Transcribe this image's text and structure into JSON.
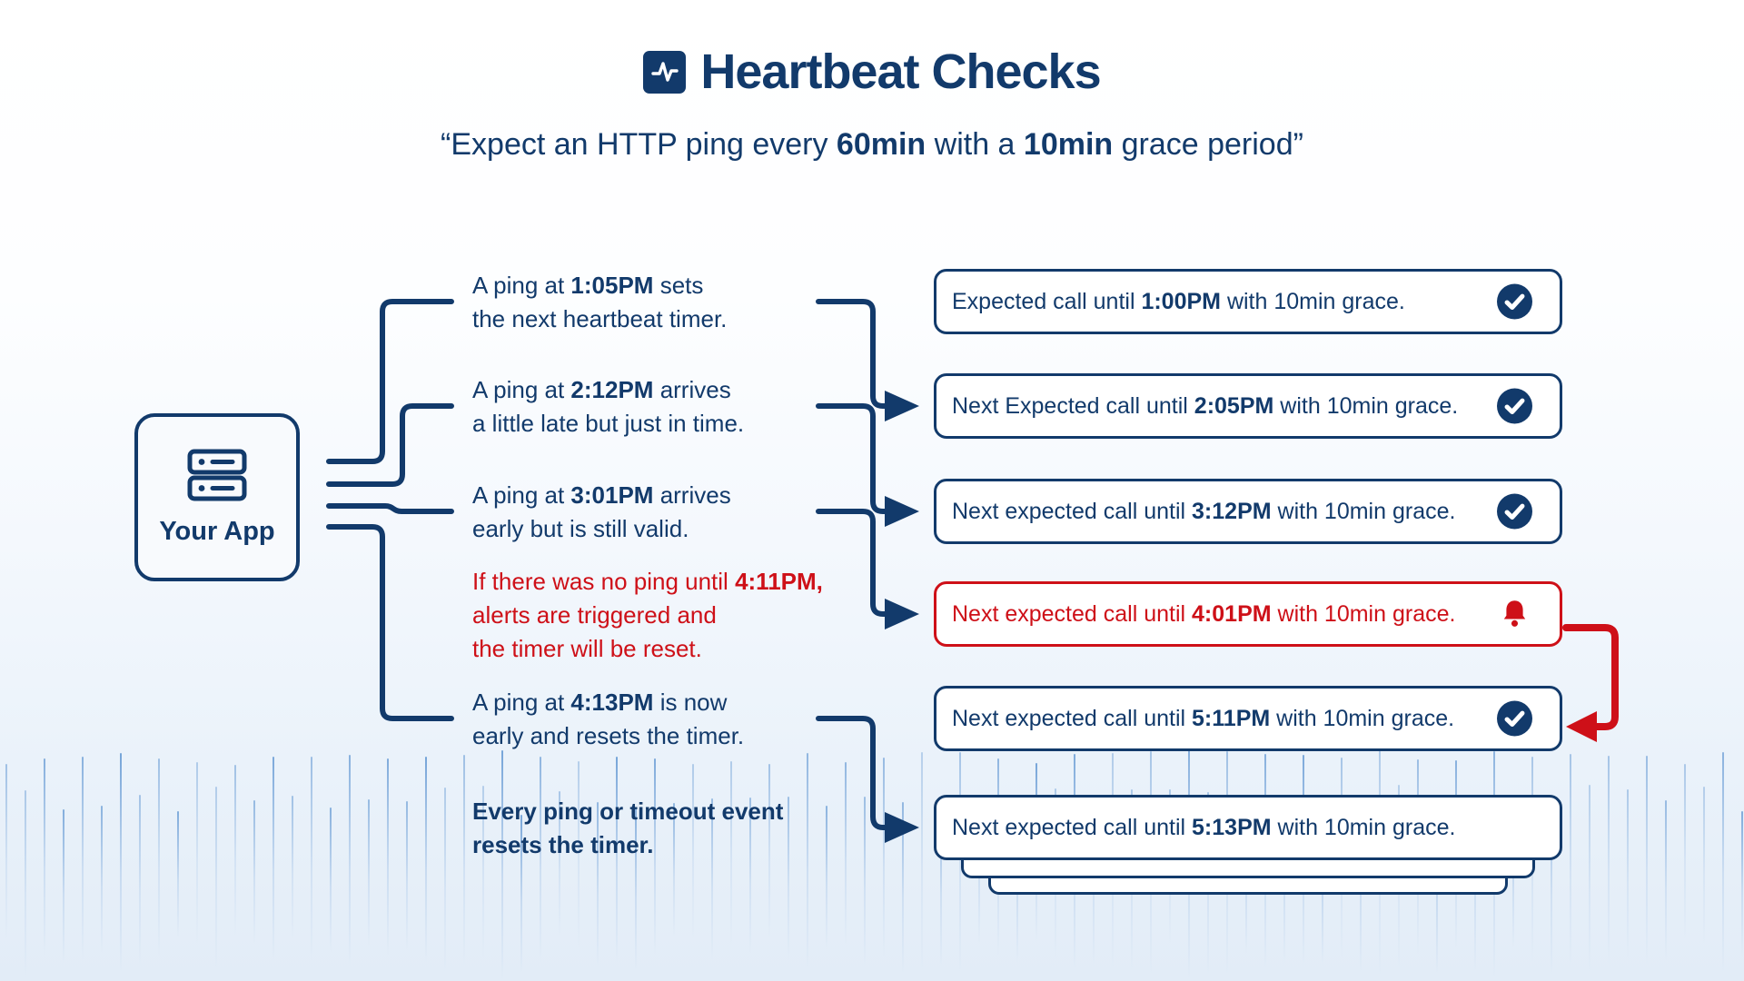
{
  "colors": {
    "navy": "#123a6b",
    "red": "#ce1018",
    "waveform_blue": "#9ec6e8"
  },
  "header": {
    "icon": "pulse-icon",
    "title": "Heartbeat Checks",
    "subtitle": {
      "pre": "“Expect an HTTP ping every ",
      "bold1": "60min",
      "mid": " with a ",
      "bold2": "10min",
      "post": " grace period”"
    }
  },
  "app_node": {
    "icon": "server-icon",
    "label": "Your App"
  },
  "annotations": [
    {
      "pre": "A ping at ",
      "bold": "1:05PM",
      "post": " sets\nthe next heartbeat timer."
    },
    {
      "pre": "A ping at ",
      "bold": "2:12PM",
      "post": " arrives\na little late but just in time."
    },
    {
      "pre": "A ping at ",
      "bold": "3:01PM",
      "post": " arrives\nearly but is still valid."
    },
    {
      "pre": "If there was no ping until ",
      "bold": "4:11PM,",
      "post": "\nalerts are triggered and\nthe timer will be reset."
    },
    {
      "pre": "A ping at ",
      "bold": "4:13PM",
      "post": " is now\nearly and resets the timer."
    },
    {
      "pre": "",
      "bold": "Every ping or timeout event\nresets the timer.",
      "post": ""
    }
  ],
  "status_boxes": [
    {
      "pre": "Expected call until ",
      "bold": "1:00PM",
      "post": " with 10min grace.",
      "icon": "check",
      "variant": "ok"
    },
    {
      "pre": "Next Expected call until ",
      "bold": "2:05PM",
      "post": " with 10min grace.",
      "icon": "check",
      "variant": "ok"
    },
    {
      "pre": "Next expected call until ",
      "bold": "3:12PM",
      "post": " with 10min grace.",
      "icon": "check",
      "variant": "ok"
    },
    {
      "pre": "Next expected call until ",
      "bold": "4:01PM",
      "post": " with 10min grace.",
      "icon": "bell",
      "variant": "alert"
    },
    {
      "pre": "Next expected call until ",
      "bold": "5:11PM",
      "post": " with 10min grace.",
      "icon": "check",
      "variant": "ok"
    },
    {
      "pre": "Next expected call until ",
      "bold": "5:13PM",
      "post": " with 10min grace.",
      "icon": "none",
      "variant": "ok"
    }
  ]
}
